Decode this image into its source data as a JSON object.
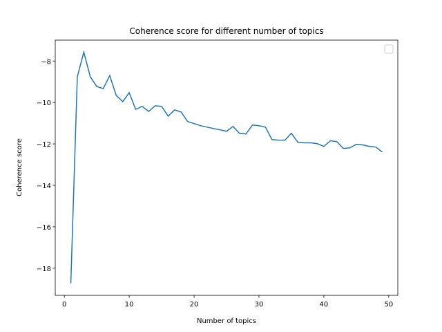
{
  "chart_data": {
    "type": "line",
    "title": "Coherence score for different number of topics",
    "x_label": "Number of topics",
    "y_label": "Coherence score",
    "x": [
      1,
      2,
      3,
      4,
      5,
      6,
      7,
      8,
      9,
      10,
      11,
      12,
      13,
      14,
      15,
      16,
      17,
      18,
      19,
      20,
      21,
      22,
      23,
      24,
      25,
      26,
      27,
      28,
      29,
      30,
      31,
      32,
      33,
      34,
      35,
      36,
      37,
      38,
      39,
      40,
      41,
      42,
      43,
      44,
      45,
      46,
      47,
      48,
      49
    ],
    "series": [
      {
        "color": "#1f77b4",
        "values": [
          -18.73,
          -8.76,
          -7.57,
          -8.76,
          -9.23,
          -9.33,
          -8.7,
          -9.66,
          -9.96,
          -9.53,
          -10.33,
          -10.19,
          -10.43,
          -10.16,
          -10.19,
          -10.66,
          -10.36,
          -10.46,
          -10.92,
          -11.02,
          -11.12,
          -11.19,
          -11.26,
          -11.32,
          -11.39,
          -11.16,
          -11.49,
          -11.52,
          -11.09,
          -11.12,
          -11.19,
          -11.79,
          -11.82,
          -11.82,
          -11.49,
          -11.92,
          -11.95,
          -11.95,
          -11.99,
          -12.12,
          -11.85,
          -11.89,
          -12.22,
          -12.19,
          -12.02,
          -12.05,
          -12.12,
          -12.15,
          -12.39
        ]
      }
    ],
    "xlim": [
      -1.4,
      51.4
    ],
    "ylim": [
      -19.31,
      -6.99
    ],
    "xticks": [
      0,
      10,
      20,
      30,
      40,
      50
    ],
    "yticks": [
      {
        "value": -18,
        "label": "−18"
      },
      {
        "value": -16,
        "label": "−16"
      },
      {
        "value": -14,
        "label": "−14"
      },
      {
        "value": -12,
        "label": "−12"
      },
      {
        "value": -10,
        "label": "−10"
      },
      {
        "value": -8,
        "label": "−8"
      }
    ]
  }
}
